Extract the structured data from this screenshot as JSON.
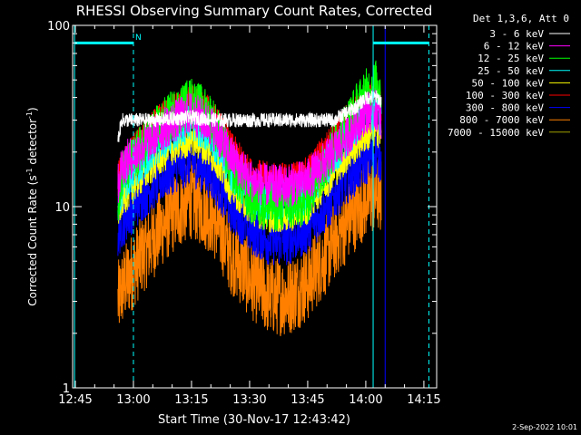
{
  "chart_data": {
    "type": "line",
    "title": "RHESSI Observing Summary Count Rates, Corrected",
    "xlabel": "Start Time (30-Nov-17 12:43:42)",
    "ylabel_main": "Corrected Count Rate (s",
    "ylabel_sup1": "-1",
    "ylabel_mid": " detector",
    "ylabel_sup2": "-1",
    "ylabel_end": ")",
    "yscale": "log",
    "xlim_minutes": [
      -0.7,
      93.3
    ],
    "ylim": [
      1,
      100
    ],
    "x_ticks": [
      {
        "label": "12:45",
        "minute": 0
      },
      {
        "label": "13:00",
        "minute": 15
      },
      {
        "label": "13:15",
        "minute": 30
      },
      {
        "label": "13:30",
        "minute": 45
      },
      {
        "label": "13:45",
        "minute": 60
      },
      {
        "label": "14:00",
        "minute": 75
      },
      {
        "label": "14:15",
        "minute": 90
      }
    ],
    "y_ticks": [
      {
        "label": "1",
        "value": 1
      },
      {
        "label": "10",
        "value": 10
      },
      {
        "label": "100",
        "value": 100
      }
    ],
    "legend_header": "Det 1,3,6, Att 0",
    "legend_position": "right",
    "series": [
      {
        "name": "3 - 6 keV",
        "color": "#ffffff",
        "x": [
          11,
          12,
          13,
          20,
          30,
          37,
          40,
          45,
          50,
          55,
          60,
          67,
          70,
          73,
          75,
          78,
          79
        ],
        "y": [
          23,
          30,
          30,
          30,
          31,
          30,
          30,
          30,
          30,
          30,
          30,
          30,
          33,
          36,
          40,
          40,
          38
        ]
      },
      {
        "name": "6 - 12 keV",
        "color": "#ff00ff",
        "x": [
          11,
          12,
          15,
          20,
          25,
          30,
          35,
          40,
          45,
          50,
          55,
          60,
          65,
          70,
          75,
          78,
          79
        ],
        "y": [
          13,
          17,
          19,
          24,
          29,
          33,
          28,
          19,
          14,
          13,
          13,
          14,
          18,
          24,
          33,
          34,
          28
        ]
      },
      {
        "name": "12 - 25 keV",
        "color": "#00ff00",
        "x": [
          11,
          12,
          15,
          20,
          25,
          30,
          35,
          40,
          45,
          50,
          55,
          60,
          65,
          70,
          75,
          78,
          79
        ],
        "y": [
          11,
          15,
          18,
          25,
          32,
          38,
          31,
          17,
          11,
          10,
          10,
          11,
          18,
          28,
          42,
          48,
          42
        ]
      },
      {
        "name": "25 - 50 keV",
        "color": "#00ffff",
        "x": [
          11,
          12,
          15,
          20,
          25,
          30,
          35,
          40,
          45,
          50,
          55,
          60,
          65,
          70,
          75,
          78,
          79
        ],
        "y": [
          10,
          13,
          16,
          21,
          26,
          30,
          25,
          16,
          12,
          11,
          11,
          12,
          17,
          24,
          33,
          35,
          30
        ]
      },
      {
        "name": "50 - 100 keV",
        "color": "#ffff00",
        "x": [
          11,
          12,
          15,
          20,
          25,
          30,
          35,
          40,
          45,
          50,
          55,
          60,
          65,
          70,
          75,
          78,
          79
        ],
        "y": [
          9,
          11,
          13,
          17,
          21,
          24,
          20,
          13,
          10,
          9,
          9,
          10,
          14,
          19,
          25,
          27,
          24
        ]
      },
      {
        "name": "100 - 300 keV",
        "color": "#ff0000",
        "x": [
          11,
          12,
          15,
          20,
          25,
          30,
          35,
          40,
          45,
          50,
          55,
          60,
          65,
          70,
          75,
          78,
          79
        ],
        "y": [
          14,
          16,
          20,
          27,
          34,
          38,
          32,
          21,
          15,
          14,
          14,
          15,
          21,
          29,
          38,
          40,
          34
        ]
      },
      {
        "name": "300 - 800 keV",
        "color": "#0000ff",
        "x": [
          11,
          12,
          15,
          20,
          25,
          30,
          35,
          40,
          45,
          50,
          55,
          60,
          65,
          70,
          75,
          78,
          79
        ],
        "y": [
          7,
          8,
          10,
          13,
          16,
          18,
          15,
          10,
          7.5,
          6.5,
          6.5,
          7.5,
          10,
          14,
          18,
          20,
          18
        ]
      },
      {
        "name": "800 - 7000 keV",
        "color": "#ff8000",
        "x": [
          11,
          12,
          15,
          20,
          25,
          30,
          35,
          40,
          45,
          50,
          55,
          60,
          65,
          70,
          75,
          78,
          79
        ],
        "y": [
          3,
          3.5,
          4.5,
          6.5,
          9,
          11,
          9,
          5.5,
          4,
          3.2,
          3.2,
          3.8,
          5.5,
          8,
          11,
          12,
          11
        ]
      },
      {
        "name": "7000 - 15000 keV",
        "color": "#a0a000",
        "x": [],
        "y": []
      }
    ],
    "overlay_lines": [
      {
        "kind": "solid",
        "color": "#00ffff",
        "minute": -0.2
      },
      {
        "kind": "dashed",
        "color": "#00ffff",
        "minute": 15
      },
      {
        "kind": "solid",
        "color": "#00ffff",
        "minute": 76.9
      },
      {
        "kind": "dashed",
        "color": "#00ffff",
        "minute": 91.3
      },
      {
        "kind": "solid",
        "color": "#0000ff",
        "minute": 80.0
      }
    ],
    "overlay_bars": [
      {
        "label": "",
        "color": "#00ffff",
        "from_minute": -0.2,
        "to_minute": 15,
        "value": 80
      },
      {
        "label": "",
        "color": "#00ffff",
        "from_minute": 76.9,
        "to_minute": 91.3,
        "value": 80
      }
    ],
    "flag_label": "N",
    "footer_date": "2-Sep-2022 10:01"
  }
}
